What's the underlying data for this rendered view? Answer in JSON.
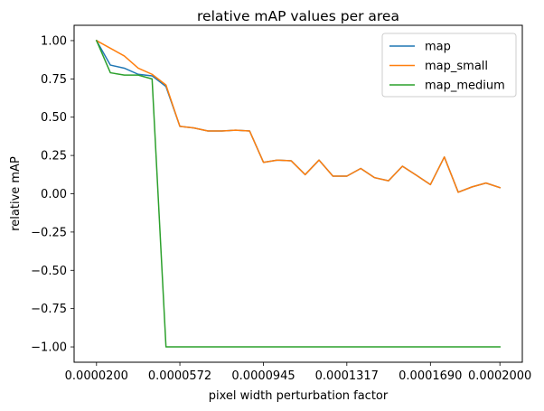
{
  "chart_data": {
    "type": "line",
    "title": "relative mAP values per area",
    "xlabel": "pixel width perturbation factor",
    "ylabel": "relative mAP",
    "xlim": [
      1e-05,
      0.00021
    ],
    "ylim": [
      -1.1,
      1.1
    ],
    "xticks": [
      2e-05,
      5.72e-05,
      9.45e-05,
      0.0001317,
      0.000169,
      0.0002
    ],
    "xtick_labels": [
      "0.0000200",
      "0.0000572",
      "0.0000945",
      "0.0001317",
      "0.0001690",
      "0.0002000"
    ],
    "yticks": [
      -1.0,
      -0.75,
      -0.5,
      -0.25,
      0.0,
      0.25,
      0.5,
      0.75,
      1.0
    ],
    "ytick_labels": [
      "−1.00",
      "−0.75",
      "−0.50",
      "−0.25",
      "0.00",
      "0.25",
      "0.50",
      "0.75",
      "1.00"
    ],
    "grid": false,
    "legend_position": "top-right",
    "x": [
      2e-05,
      2.62e-05,
      3.24e-05,
      3.86e-05,
      4.48e-05,
      5.1e-05,
      5.72e-05,
      6.34e-05,
      6.97e-05,
      7.59e-05,
      8.21e-05,
      8.83e-05,
      9.45e-05,
      0.0001007,
      0.0001069,
      0.0001131,
      0.0001193,
      0.0001255,
      0.0001317,
      0.0001379,
      0.0001441,
      0.0001503,
      0.0001565,
      0.0001628,
      0.000169,
      0.0001752,
      0.0001814,
      0.0001876,
      0.0001938,
      0.0002
    ],
    "series": [
      {
        "name": "map",
        "color": "#1f77b4",
        "values": [
          1.0,
          0.84,
          0.82,
          0.78,
          0.77,
          0.7,
          0.44,
          0.43,
          0.41,
          0.41,
          0.415,
          0.41,
          0.205,
          0.22,
          0.215,
          0.125,
          0.22,
          0.115,
          0.115,
          0.165,
          0.105,
          0.085,
          0.18,
          0.12,
          0.06,
          0.24,
          0.01,
          0.045,
          0.07,
          0.04
        ]
      },
      {
        "name": "map_small",
        "color": "#ff7f0e",
        "values": [
          1.0,
          0.95,
          0.9,
          0.82,
          0.78,
          0.71,
          0.44,
          0.43,
          0.41,
          0.41,
          0.415,
          0.41,
          0.205,
          0.22,
          0.215,
          0.125,
          0.22,
          0.115,
          0.115,
          0.165,
          0.105,
          0.085,
          0.18,
          0.12,
          0.06,
          0.24,
          0.01,
          0.045,
          0.07,
          0.04
        ]
      },
      {
        "name": "map_medium",
        "color": "#2ca02c",
        "values": [
          1.0,
          0.79,
          0.775,
          0.775,
          0.75,
          -1.0,
          -1.0,
          -1.0,
          -1.0,
          -1.0,
          -1.0,
          -1.0,
          -1.0,
          -1.0,
          -1.0,
          -1.0,
          -1.0,
          -1.0,
          -1.0,
          -1.0,
          -1.0,
          -1.0,
          -1.0,
          -1.0,
          -1.0,
          -1.0,
          -1.0,
          -1.0,
          -1.0,
          -1.0
        ]
      }
    ]
  }
}
